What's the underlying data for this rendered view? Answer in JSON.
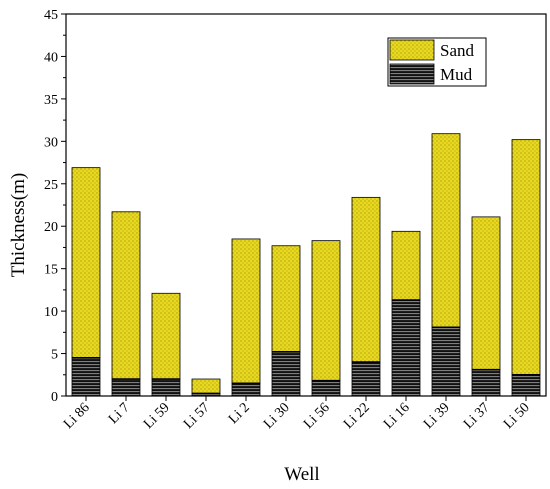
{
  "chart_data": {
    "type": "bar",
    "stacked": true,
    "xlabel": "Well",
    "ylabel": "Thickness(m)",
    "ylim": [
      0,
      45
    ],
    "ytick_step": 5,
    "categories": [
      "Li 86",
      "Li 7",
      "Li 59",
      "Li 57",
      "Li 2",
      "Li 30",
      "Li 56",
      "Li 22",
      "Li 16",
      "Li 39",
      "Li 37",
      "Li 50"
    ],
    "series": [
      {
        "name": "Mud",
        "color": "#000000",
        "pattern": "horizontal-lines",
        "values": [
          4.5,
          2.0,
          2.0,
          0.3,
          1.5,
          5.2,
          1.8,
          4.0,
          11.3,
          8.1,
          3.1,
          2.5
        ]
      },
      {
        "name": "Sand",
        "color": "#e8d820",
        "pattern": "dots",
        "values": [
          22.4,
          19.7,
          10.1,
          1.7,
          17.0,
          12.5,
          16.5,
          19.4,
          8.1,
          22.8,
          18.0,
          27.7
        ]
      }
    ],
    "legend": {
      "position": "top-right",
      "order": [
        "Sand",
        "Mud"
      ]
    },
    "grid": false
  }
}
